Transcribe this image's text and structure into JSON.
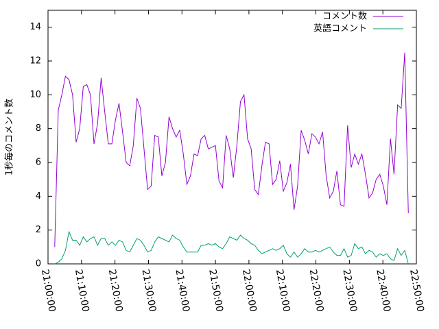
{
  "chart_data": {
    "type": "line",
    "y_label": "1秒毎のコメント数",
    "x": [
      "21:02:00",
      "21:03:04",
      "21:04:08",
      "21:05:12",
      "21:06:16",
      "21:07:20",
      "21:08:24",
      "21:09:28",
      "21:10:32",
      "21:11:36",
      "21:12:40",
      "21:13:44",
      "21:14:48",
      "21:15:52",
      "21:16:56",
      "21:18:00",
      "21:19:04",
      "21:20:08",
      "21:21:12",
      "21:22:16",
      "21:23:20",
      "21:24:24",
      "21:25:28",
      "21:26:32",
      "21:27:36",
      "21:28:40",
      "21:29:44",
      "21:30:48",
      "21:31:52",
      "21:32:56",
      "21:34:00",
      "21:35:04",
      "21:36:08",
      "21:37:12",
      "21:38:16",
      "21:39:20",
      "21:40:24",
      "21:41:28",
      "21:42:32",
      "21:43:36",
      "21:44:40",
      "21:45:44",
      "21:46:48",
      "21:47:52",
      "21:48:56",
      "21:50:00",
      "21:51:04",
      "21:52:08",
      "21:53:12",
      "21:54:16",
      "21:55:20",
      "21:56:24",
      "21:57:28",
      "21:58:32",
      "21:59:36",
      "22:00:40",
      "22:01:44",
      "22:02:48",
      "22:03:52",
      "22:04:56",
      "22:06:00",
      "22:07:04",
      "22:08:08",
      "22:09:12",
      "22:10:16",
      "22:11:20",
      "22:12:24",
      "22:13:28",
      "22:14:32",
      "22:15:36",
      "22:16:40",
      "22:17:44",
      "22:18:48",
      "22:19:52",
      "22:20:56",
      "22:22:00",
      "22:23:04",
      "22:24:08",
      "22:25:12",
      "22:26:16",
      "22:27:20",
      "22:28:24",
      "22:29:28",
      "22:30:32",
      "22:31:36",
      "22:32:40",
      "22:33:44",
      "22:34:48",
      "22:35:52",
      "22:36:56",
      "22:38:00",
      "22:39:04",
      "22:40:08",
      "22:41:12",
      "22:42:16",
      "22:43:20",
      "22:44:24",
      "22:45:28",
      "22:46:32",
      "22:47:36"
    ],
    "series": [
      {
        "name": "コメント数",
        "color": "#9400d3",
        "values": [
          1,
          9.1,
          10,
          11.1,
          10.9,
          10,
          7.2,
          8,
          10.5,
          10.6,
          10,
          7.1,
          8.3,
          11,
          9,
          7.1,
          7.1,
          8.5,
          9.5,
          7.8,
          6,
          5.8,
          7,
          9.8,
          9.2,
          6.8,
          4.4,
          4.6,
          7.6,
          7.5,
          5.2,
          6,
          8.7,
          8,
          7.5,
          7.9,
          6.5,
          4.7,
          5.2,
          6.5,
          6.4,
          7.4,
          7.6,
          6.8,
          6.9,
          7,
          4.9,
          4.5,
          7.6,
          6.8,
          5.1,
          7,
          9.6,
          10,
          7.4,
          6.8,
          4.4,
          4.1,
          5.8,
          7.2,
          7.1,
          4.7,
          5,
          6.1,
          4.3,
          4.8,
          5.9,
          3.2,
          4.6,
          7.9,
          7.3,
          6.5,
          7.7,
          7.5,
          7.1,
          7.8,
          5.2,
          3.9,
          4.3,
          5.5,
          3.5,
          3.4,
          8.2,
          5.7,
          6.5,
          5.9,
          6.5,
          5.3,
          3.9,
          4.2,
          5,
          5.3,
          4.6,
          3.5,
          7.4,
          5.3,
          9.4,
          9.2,
          12.5,
          3
        ]
      },
      {
        "name": "英語コメント",
        "color": "#009e73",
        "values": [
          0,
          0.1,
          0.3,
          0.8,
          1.9,
          1.4,
          1.4,
          1.1,
          1.6,
          1.3,
          1.5,
          1.6,
          1.1,
          1.5,
          1.5,
          1.1,
          1.3,
          1.1,
          1.4,
          1.3,
          0.8,
          0.7,
          1.1,
          1.5,
          1.4,
          1.1,
          0.7,
          0.8,
          1.3,
          1.6,
          1.5,
          1.4,
          1.3,
          1.7,
          1.5,
          1.4,
          1.0,
          0.7,
          0.7,
          0.7,
          0.7,
          1.1,
          1.1,
          1.2,
          1.1,
          1.2,
          1.0,
          0.9,
          1.2,
          1.6,
          1.5,
          1.4,
          1.7,
          1.5,
          1.4,
          1.2,
          1.1,
          0.8,
          0.6,
          0.7,
          0.8,
          0.9,
          0.8,
          0.9,
          1.1,
          0.6,
          0.4,
          0.7,
          0.4,
          0.6,
          0.9,
          0.7,
          0.7,
          0.8,
          0.7,
          0.8,
          0.9,
          1.0,
          0.7,
          0.5,
          0.5,
          0.9,
          0.4,
          0.5,
          1.2,
          0.9,
          1.0,
          0.6,
          0.8,
          0.7,
          0.4,
          0.6,
          0.5,
          0.6,
          0.3,
          0.2,
          0.9,
          0.5,
          0.8,
          0
        ]
      }
    ],
    "xlim": [
      "21:00:00",
      "22:50:00"
    ],
    "xticks": [
      "21:00:00",
      "21:10:00",
      "21:20:00",
      "21:30:00",
      "21:40:00",
      "21:50:00",
      "22:00:00",
      "22:10:00",
      "22:20:00",
      "22:30:00",
      "22:40:00",
      "22:50:00"
    ],
    "ylim": [
      0,
      15
    ],
    "yticks": [
      0,
      2,
      4,
      6,
      8,
      10,
      12,
      14
    ],
    "legend": "top-right"
  }
}
